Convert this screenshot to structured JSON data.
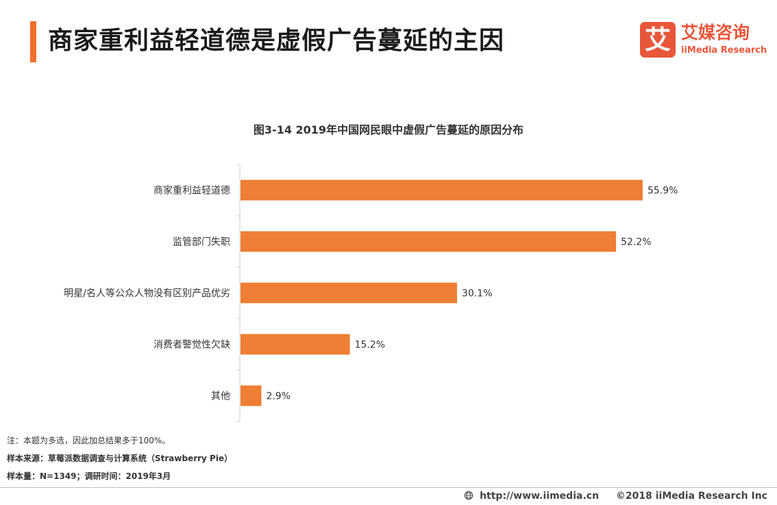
{
  "header": {
    "title": "商家重利益轻道德是虚假广告蔓延的主因",
    "accent_color": "#F26E2B"
  },
  "brand": {
    "mark": "艾",
    "name_cn": "艾媒咨询",
    "name_en": "iiMedia Research",
    "color": "#E8573A"
  },
  "chart_data": {
    "type": "bar",
    "orientation": "horizontal",
    "title": "图3-14 2019年中国网民眼中虚假广告蔓延的原因分布",
    "categories": [
      "商家重利益轻道德",
      "监管部门失职",
      "明星/名人等公众人物没有区别产品优劣",
      "消费者警觉性欠缺",
      "其他"
    ],
    "values": [
      55.9,
      52.2,
      30.1,
      15.2,
      2.9
    ],
    "value_labels": [
      "55.9%",
      "52.2%",
      "30.1%",
      "15.2%",
      "2.9%"
    ],
    "unit": "%",
    "xlim": [
      0,
      100
    ],
    "bar_color": "#EE7E33",
    "grid": false,
    "legend": "none"
  },
  "notes": {
    "note": "注：本题为多选，因此加总结果多于100%。",
    "source": "样本来源：草莓派数据调查与计算系统（Strawberry Pie）",
    "sample": "样本量：N=1349；调研时间：2019年3月"
  },
  "footer": {
    "icon": "globe-icon",
    "url": "http://www.iimedia.cn",
    "copyright": "©2018  iiMedia Research  Inc"
  }
}
